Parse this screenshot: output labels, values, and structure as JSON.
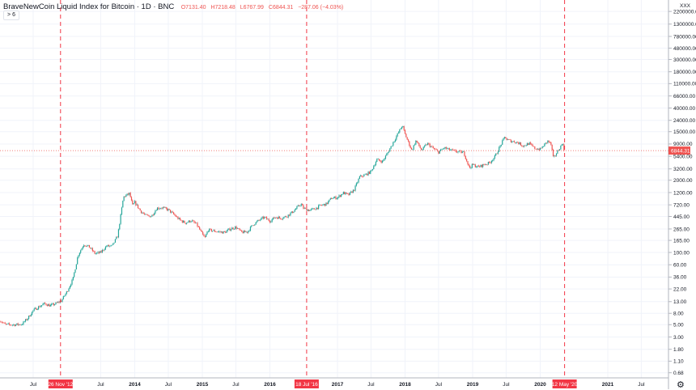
{
  "header": {
    "title": "BraveNewCoin Liquid Index for Bitcoin · 1D · BNC",
    "open": "O7131.40",
    "high": "H7218.48",
    "low": "L6767.99",
    "close": "C6844.31",
    "change": "−287.06 (−4.03%)",
    "collapse_label": "> 6"
  },
  "settings_icon": "gear-icon",
  "chart_data": {
    "type": "candlestick",
    "title": "BraveNewCoin Liquid Index for Bitcoin · 1D · BNC",
    "scale": "log",
    "grid": true,
    "colors": {
      "up": "#26a69a",
      "down": "#ef5350",
      "marker": "#f23645",
      "grid": "#f0f3fa"
    },
    "last_price": 6844.31,
    "last_price_label": "6844.31",
    "currency_tag": "XXX",
    "ylim": [
      0.6,
      3600000
    ],
    "y_ticks": [
      "2200000.00",
      "1300000.00",
      "780000.00",
      "480000.00",
      "300000.00",
      "180000.00",
      "110000.00",
      "66000.00",
      "40000.00",
      "24000.00",
      "15000.00",
      "9000.00",
      "5400.00",
      "3200.00",
      "2000.00",
      "1200.00",
      "720.00",
      "445.00",
      "265.00",
      "165.00",
      "100.00",
      "60.00",
      "36.00",
      "22.00",
      "13.00",
      "8.00",
      "5.00",
      "3.00",
      "1.80",
      "1.10",
      "0.68"
    ],
    "y_tick_values": [
      2200000,
      1300000,
      780000,
      480000,
      300000,
      180000,
      110000,
      66000,
      40000,
      24000,
      15000,
      9000,
      5400,
      3200,
      2000,
      1200,
      720,
      445,
      265,
      165,
      100,
      60,
      36,
      22,
      13,
      8,
      5,
      3,
      1.8,
      1.1,
      0.68
    ],
    "x_ticks": [
      {
        "label": "Jul",
        "date": "2012-07-01",
        "year": false
      },
      {
        "label": "Jul",
        "date": "2013-07-01",
        "year": false
      },
      {
        "label": "2014",
        "date": "2014-01-01",
        "year": true
      },
      {
        "label": "Jul",
        "date": "2014-07-01",
        "year": false
      },
      {
        "label": "2015",
        "date": "2015-01-01",
        "year": true
      },
      {
        "label": "Jul",
        "date": "2015-07-01",
        "year": false
      },
      {
        "label": "2016",
        "date": "2016-01-01",
        "year": true
      },
      {
        "label": "2017",
        "date": "2017-01-01",
        "year": true
      },
      {
        "label": "Jul",
        "date": "2017-07-01",
        "year": false
      },
      {
        "label": "2018",
        "date": "2018-01-01",
        "year": true
      },
      {
        "label": "Jul",
        "date": "2018-07-01",
        "year": false
      },
      {
        "label": "2019",
        "date": "2019-01-01",
        "year": true
      },
      {
        "label": "Jul",
        "date": "2019-07-01",
        "year": false
      },
      {
        "label": "2020",
        "date": "2020-01-01",
        "year": true
      },
      {
        "label": "2021",
        "date": "2021-01-01",
        "year": true
      },
      {
        "label": "Jul",
        "date": "2021-07-01",
        "year": false
      }
    ],
    "markers": [
      {
        "label": "26 Nov '12",
        "date": "2012-11-26"
      },
      {
        "label": "18 Jul '16",
        "date": "2016-07-18"
      },
      {
        "label": "12 May '20",
        "date": "2020-05-12"
      }
    ],
    "points": [
      [
        "2012-01-01",
        6
      ],
      [
        "2012-02-01",
        5
      ],
      [
        "2012-03-01",
        5
      ],
      [
        "2012-04-01",
        5
      ],
      [
        "2012-05-01",
        5.1
      ],
      [
        "2012-06-01",
        6.5
      ],
      [
        "2012-07-01",
        9
      ],
      [
        "2012-08-01",
        10.5
      ],
      [
        "2012-09-01",
        12
      ],
      [
        "2012-10-01",
        11
      ],
      [
        "2012-11-01",
        12
      ],
      [
        "2012-12-01",
        13.5
      ],
      [
        "2013-01-01",
        20
      ],
      [
        "2013-02-01",
        33
      ],
      [
        "2013-03-01",
        90
      ],
      [
        "2013-04-01",
        140
      ],
      [
        "2013-05-01",
        125
      ],
      [
        "2013-06-01",
        95
      ],
      [
        "2013-07-01",
        100
      ],
      [
        "2013-08-01",
        130
      ],
      [
        "2013-09-01",
        130
      ],
      [
        "2013-10-01",
        200
      ],
      [
        "2013-11-01",
        1000
      ],
      [
        "2013-12-04",
        1150
      ],
      [
        "2013-12-20",
        700
      ],
      [
        "2014-01-01",
        800
      ],
      [
        "2014-02-01",
        560
      ],
      [
        "2014-03-01",
        460
      ],
      [
        "2014-04-01",
        450
      ],
      [
        "2014-05-01",
        630
      ],
      [
        "2014-06-01",
        640
      ],
      [
        "2014-07-01",
        585
      ],
      [
        "2014-08-01",
        480
      ],
      [
        "2014-09-01",
        385
      ],
      [
        "2014-10-01",
        340
      ],
      [
        "2014-11-01",
        375
      ],
      [
        "2014-12-01",
        320
      ],
      [
        "2015-01-14",
        180
      ],
      [
        "2015-02-01",
        255
      ],
      [
        "2015-03-01",
        245
      ],
      [
        "2015-04-01",
        235
      ],
      [
        "2015-05-01",
        230
      ],
      [
        "2015-06-01",
        265
      ],
      [
        "2015-07-01",
        285
      ],
      [
        "2015-08-01",
        230
      ],
      [
        "2015-09-01",
        235
      ],
      [
        "2015-10-01",
        315
      ],
      [
        "2015-11-01",
        375
      ],
      [
        "2015-12-01",
        430
      ],
      [
        "2016-01-01",
        370
      ],
      [
        "2016-02-01",
        435
      ],
      [
        "2016-03-01",
        415
      ],
      [
        "2016-04-01",
        450
      ],
      [
        "2016-05-01",
        530
      ],
      [
        "2016-06-17",
        750
      ],
      [
        "2016-07-01",
        625
      ],
      [
        "2016-08-01",
        575
      ],
      [
        "2016-09-01",
        610
      ],
      [
        "2016-10-01",
        700
      ],
      [
        "2016-11-01",
        745
      ],
      [
        "2016-12-01",
        960
      ],
      [
        "2017-01-01",
        970
      ],
      [
        "2017-02-01",
        1190
      ],
      [
        "2017-03-01",
        1080
      ],
      [
        "2017-04-01",
        1350
      ],
      [
        "2017-05-01",
        2300
      ],
      [
        "2017-06-01",
        2500
      ],
      [
        "2017-07-01",
        2870
      ],
      [
        "2017-08-01",
        4700
      ],
      [
        "2017-09-01",
        4340
      ],
      [
        "2017-10-01",
        6400
      ],
      [
        "2017-11-01",
        10000
      ],
      [
        "2017-12-17",
        19500
      ],
      [
        "2018-01-01",
        13500
      ],
      [
        "2018-02-06",
        6900
      ],
      [
        "2018-03-01",
        10300
      ],
      [
        "2018-04-01",
        6900
      ],
      [
        "2018-05-01",
        9200
      ],
      [
        "2018-06-01",
        7500
      ],
      [
        "2018-07-01",
        6400
      ],
      [
        "2018-08-01",
        7700
      ],
      [
        "2018-09-01",
        7000
      ],
      [
        "2018-10-01",
        6600
      ],
      [
        "2018-11-14",
        6300
      ],
      [
        "2018-12-15",
        3300
      ],
      [
        "2019-01-01",
        3800
      ],
      [
        "2019-02-01",
        3450
      ],
      [
        "2019-03-01",
        3800
      ],
      [
        "2019-04-01",
        4100
      ],
      [
        "2019-05-01",
        5300
      ],
      [
        "2019-06-26",
        12500
      ],
      [
        "2019-07-01",
        10800
      ],
      [
        "2019-08-01",
        10100
      ],
      [
        "2019-09-01",
        9600
      ],
      [
        "2019-10-01",
        8300
      ],
      [
        "2019-11-01",
        9200
      ],
      [
        "2019-12-01",
        7550
      ],
      [
        "2020-01-01",
        7200
      ],
      [
        "2020-02-13",
        10300
      ],
      [
        "2020-03-01",
        8600
      ],
      [
        "2020-03-12",
        4900
      ],
      [
        "2020-04-01",
        6400
      ],
      [
        "2020-05-07",
        9900
      ],
      [
        "2020-05-12",
        6844.31
      ]
    ]
  }
}
